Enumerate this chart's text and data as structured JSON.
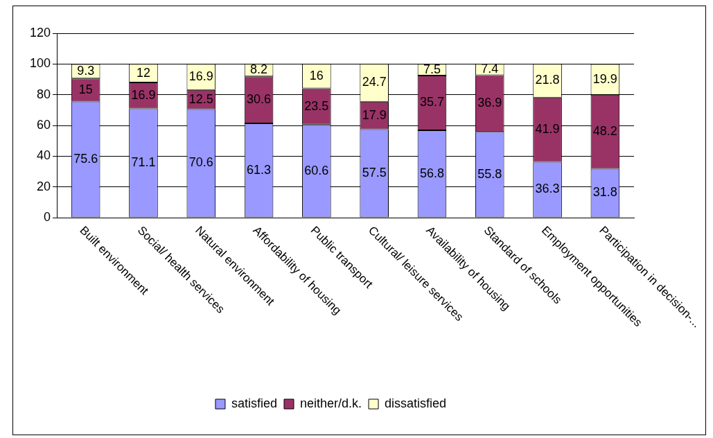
{
  "chart_data": {
    "type": "bar",
    "stacked": true,
    "categories": [
      "Built environment",
      "Social/ health services",
      "Natural environment",
      "Affordability of housing",
      "Public transport",
      "Cultural/ leisure services",
      "Availability of housing",
      "Standard of schools",
      "Employment opportunities",
      "Participation in decision-..."
    ],
    "series": [
      {
        "name": "satisfied",
        "color": "#9999ff",
        "values": [
          75.6,
          71.1,
          70.6,
          61.3,
          60.6,
          57.5,
          56.8,
          55.8,
          36.3,
          31.8
        ]
      },
      {
        "name": "neither/d.k.",
        "color": "#993366",
        "values": [
          15,
          16.9,
          12.5,
          30.6,
          23.5,
          17.9,
          35.7,
          36.9,
          41.9,
          48.2
        ]
      },
      {
        "name": "dissatisfied",
        "color": "#ffffcc",
        "values": [
          9.3,
          12,
          16.9,
          8.2,
          16,
          24.7,
          7.5,
          7.4,
          21.8,
          19.9
        ]
      }
    ],
    "ylim": [
      0,
      120
    ],
    "yticks": [
      0,
      20,
      40,
      60,
      80,
      100,
      120
    ],
    "grid": "y",
    "legend": "bottom",
    "data_labels": true
  }
}
